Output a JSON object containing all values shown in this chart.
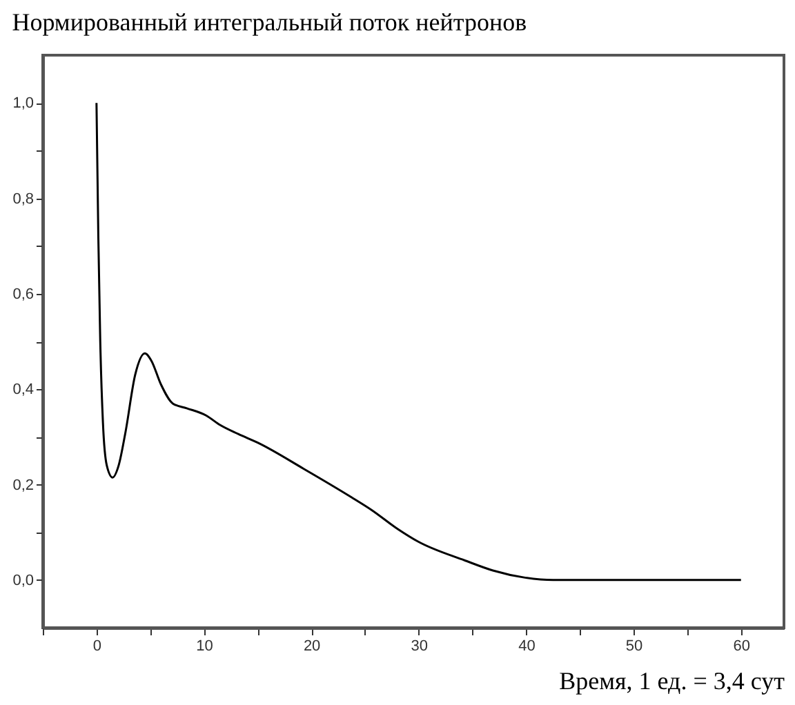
{
  "chart_data": {
    "type": "line",
    "title": "Нормированный интегральный поток нейтронов",
    "xlabel": "Время, 1 ед. = 3,4 сут",
    "x": [
      0,
      0.17,
      0.35,
      0.6,
      0.96,
      1.5,
      2.06,
      2.7,
      3.6,
      4.5,
      5.1,
      6.0,
      7.1,
      8.4,
      10.2,
      11.5,
      13.2,
      15,
      19.3,
      23.7,
      25.6,
      28.1,
      29.9,
      34.3,
      36.9,
      39.9,
      42.5,
      60
    ],
    "series": [
      {
        "color": "#000000",
        "values": [
          1.0,
          0.72,
          0.5,
          0.33,
          0.24,
          0.215,
          0.24,
          0.31,
          0.43,
          0.475,
          0.46,
          0.41,
          0.37,
          0.36,
          0.345,
          0.325,
          0.306,
          0.288,
          0.233,
          0.174,
          0.147,
          0.106,
          0.081,
          0.041,
          0.02,
          0.005,
          0,
          0
        ]
      }
    ],
    "xlim": [
      -5,
      64
    ],
    "ylim": [
      -0.1,
      1.1
    ],
    "xticks": [
      {
        "value": -5,
        "label": null
      },
      0,
      {
        "value": 5,
        "label": null
      },
      10,
      {
        "value": 15,
        "label": null
      },
      20,
      {
        "value": 25,
        "label": null
      },
      30,
      {
        "value": 35,
        "label": null
      },
      40,
      {
        "value": 45,
        "label": null
      },
      50,
      {
        "value": 55,
        "label": null
      },
      60
    ],
    "yticks": [
      {
        "value": 0,
        "label": "0,0"
      },
      {
        "value": 0.1,
        "label": null
      },
      {
        "value": 0.2,
        "label": "0,2"
      },
      {
        "value": 0.3,
        "label": null
      },
      {
        "value": 0.4,
        "label": "0,4"
      },
      {
        "value": 0.5,
        "label": null
      },
      {
        "value": 0.6,
        "label": "0,6"
      },
      {
        "value": 0.7,
        "label": null
      },
      {
        "value": 0.8,
        "label": "0,8"
      },
      {
        "value": 0.9,
        "label": null
      },
      {
        "value": 1.0,
        "label": "1,0"
      }
    ],
    "grid": false,
    "line_style": "solid"
  }
}
